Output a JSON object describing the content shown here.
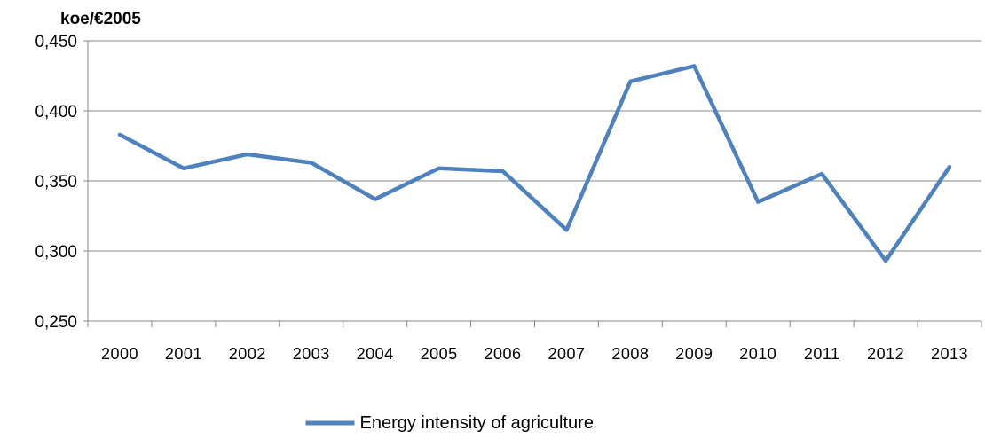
{
  "chart_data": {
    "type": "line",
    "title": "",
    "unit_label": "koe/€2005",
    "xlabel": "",
    "ylabel": "",
    "categories": [
      "2000",
      "2001",
      "2002",
      "2003",
      "2004",
      "2005",
      "2006",
      "2007",
      "2008",
      "2009",
      "2010",
      "2011",
      "2012",
      "2013"
    ],
    "series": [
      {
        "name": "Energy intensity of agriculture",
        "color": "#4F81BD",
        "values": [
          0.383,
          0.359,
          0.369,
          0.363,
          0.337,
          0.359,
          0.357,
          0.315,
          0.421,
          0.432,
          0.335,
          0.355,
          0.293,
          0.36
        ]
      }
    ],
    "ylim": [
      0.25,
      0.45
    ],
    "yticks": [
      0.25,
      0.3,
      0.35,
      0.4,
      0.45
    ],
    "ytick_labels": [
      "0,250",
      "0,300",
      "0,350",
      "0,400",
      "0,450"
    ],
    "grid": true,
    "legend_position": "bottom-center"
  }
}
